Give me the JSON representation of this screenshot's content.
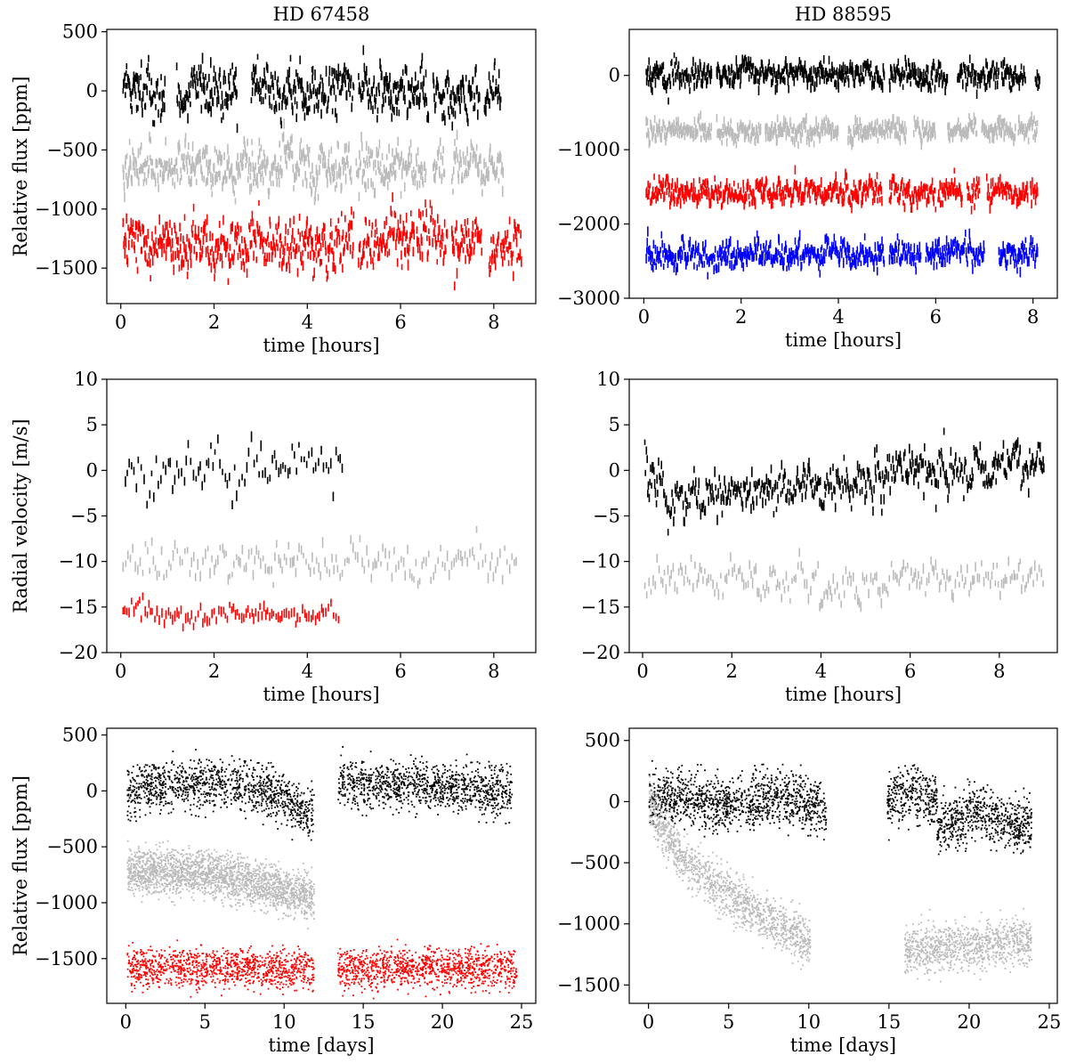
{
  "figure": {
    "background": "#ffffff"
  },
  "colors": {
    "black": "#000000",
    "gray": "#bbbbbb",
    "red": "#ff0000",
    "blue": "#0000ff"
  },
  "chart_data": [
    {
      "id": "p1",
      "type": "line",
      "style": "errorbar",
      "title": "HD 67458",
      "xlabel": "time [hours]",
      "ylabel": "Relative flux [ppm]",
      "xlim": [
        -0.3,
        8.9
      ],
      "ylim": [
        -1800,
        520
      ],
      "xticks": [
        0,
        2,
        4,
        6,
        8
      ],
      "xtick_labels": [
        "0",
        "2",
        "4",
        "6",
        "8"
      ],
      "yticks": [
        500,
        0,
        -500,
        -1000,
        -1500
      ],
      "ytick_labels": [
        "500",
        "0",
        "−500",
        "−1000",
        "−1500"
      ],
      "series": [
        {
          "name": "black",
          "color": "#000000",
          "offset": 0,
          "amplitude": 160,
          "segments": [
            [
              0.05,
              0.95
            ],
            [
              1.2,
              2.5
            ],
            [
              2.8,
              5.0
            ],
            [
              5.1,
              6.6
            ],
            [
              6.7,
              7.7
            ],
            [
              7.8,
              8.15
            ]
          ]
        },
        {
          "name": "gray",
          "color": "#bbbbbb",
          "offset": -650,
          "amplitude": 150,
          "segments": [
            [
              0.05,
              4.95
            ],
            [
              5.05,
              6.55
            ],
            [
              6.7,
              6.95
            ],
            [
              7.1,
              8.2
            ]
          ]
        },
        {
          "name": "red",
          "color": "#ff0000",
          "offset": -1280,
          "amplitude": 170,
          "segments": [
            [
              0.05,
              5.0
            ],
            [
              5.1,
              6.3
            ],
            [
              6.35,
              7.0
            ],
            [
              7.1,
              7.75
            ],
            [
              7.9,
              8.1
            ],
            [
              8.15,
              8.6
            ]
          ]
        }
      ]
    },
    {
      "id": "p2",
      "type": "line",
      "style": "errorbar",
      "title": "HD 88595",
      "xlabel": "time [hours]",
      "ylabel": "",
      "xlim": [
        -0.3,
        8.5
      ],
      "ylim": [
        -3000,
        620
      ],
      "xticks": [
        0,
        2,
        4,
        6,
        8
      ],
      "xtick_labels": [
        "0",
        "2",
        "4",
        "6",
        "8"
      ],
      "yticks": [
        0,
        -1000,
        -2000,
        -3000
      ],
      "ytick_labels": [
        "0",
        "−1000",
        "−2000",
        "−3000"
      ],
      "series": [
        {
          "name": "black",
          "color": "#000000",
          "offset": 0,
          "amplitude": 130,
          "segments": [
            [
              0.05,
              1.4
            ],
            [
              1.5,
              4.95
            ],
            [
              5.05,
              6.25
            ],
            [
              6.45,
              7.3
            ],
            [
              7.35,
              7.85
            ],
            [
              8.05,
              8.15
            ]
          ]
        },
        {
          "name": "gray",
          "color": "#bbbbbb",
          "offset": -750,
          "amplitude": 110,
          "segments": [
            [
              0.05,
              1.4
            ],
            [
              1.5,
              2.4
            ],
            [
              2.5,
              4.0
            ],
            [
              4.2,
              5.4
            ],
            [
              5.55,
              6.0
            ],
            [
              6.25,
              6.85
            ],
            [
              6.95,
              7.65
            ],
            [
              7.7,
              8.1
            ]
          ]
        },
        {
          "name": "red",
          "color": "#ff0000",
          "offset": -1580,
          "amplitude": 130,
          "segments": [
            [
              0.05,
              4.9
            ],
            [
              5.05,
              6.0
            ],
            [
              6.05,
              6.55
            ],
            [
              6.65,
              6.9
            ],
            [
              7.05,
              7.9
            ],
            [
              7.95,
              8.1
            ]
          ]
        },
        {
          "name": "blue",
          "color": "#0000ff",
          "offset": -2400,
          "amplitude": 140,
          "segments": [
            [
              0.05,
              4.95
            ],
            [
              5.05,
              5.7
            ],
            [
              5.8,
              7.0
            ],
            [
              7.3,
              8.1
            ]
          ]
        }
      ]
    },
    {
      "id": "p3",
      "type": "line",
      "style": "errorbar",
      "title": "",
      "xlabel": "time [hours]",
      "ylabel": "Radial velocity [m/s]",
      "xlim": [
        -0.3,
        8.9
      ],
      "ylim": [
        -20,
        10
      ],
      "xticks": [
        0,
        2,
        4,
        6,
        8
      ],
      "xtick_labels": [
        "0",
        "2",
        "4",
        "6",
        "8"
      ],
      "yticks": [
        10,
        5,
        0,
        -5,
        -10,
        -15,
        -20
      ],
      "ytick_labels": [
        "10",
        "5",
        "0",
        "−5",
        "−10",
        "−15",
        "−20"
      ],
      "series": [
        {
          "name": "black",
          "color": "#000000",
          "offset": 0,
          "amplitude": 2.3,
          "step": 0.05,
          "segments": [
            [
              0.1,
              4.75
            ]
          ]
        },
        {
          "name": "gray",
          "color": "#bbbbbb",
          "offset": -10,
          "amplitude": 1.6,
          "step": 0.045,
          "segments": [
            [
              0.05,
              8.5
            ]
          ]
        },
        {
          "name": "red",
          "color": "#ff0000",
          "offset": -15.7,
          "amplitude": 1.0,
          "step": 0.045,
          "segments": [
            [
              0.05,
              4.7
            ]
          ]
        }
      ]
    },
    {
      "id": "p4",
      "type": "line",
      "style": "errorbar",
      "title": "",
      "xlabel": "time [hours]",
      "ylabel": "",
      "xlim": [
        -0.3,
        9.3
      ],
      "ylim": [
        -20,
        10
      ],
      "xticks": [
        0,
        2,
        4,
        6,
        8
      ],
      "xtick_labels": [
        "0",
        "2",
        "4",
        "6",
        "8"
      ],
      "yticks": [
        10,
        5,
        0,
        -5,
        -10,
        -15,
        -20
      ],
      "ytick_labels": [
        "10",
        "5",
        "0",
        "−5",
        "−10",
        "−15",
        "−20"
      ],
      "series": [
        {
          "name": "black",
          "color": "#000000",
          "offset": 0,
          "amplitude": 1.9,
          "trend": "v",
          "step": 0.018,
          "segments": [
            [
              0.05,
              9.0
            ]
          ]
        },
        {
          "name": "gray",
          "color": "#bbbbbb",
          "offset": -12,
          "amplitude": 1.7,
          "step": 0.04,
          "segments": [
            [
              0.05,
              9.0
            ]
          ]
        }
      ]
    },
    {
      "id": "p5",
      "type": "scatter",
      "style": "dots",
      "title": "",
      "xlabel": "time [days]",
      "ylabel": "Relative flux [ppm]",
      "xlim": [
        -1.2,
        25.9
      ],
      "ylim": [
        -1900,
        560
      ],
      "xticks": [
        0,
        5,
        10,
        15,
        20,
        25
      ],
      "xtick_labels": [
        "0",
        "5",
        "10",
        "15",
        "20",
        "25"
      ],
      "yticks": [
        500,
        0,
        -500,
        -1000,
        -1500
      ],
      "ytick_labels": [
        "500",
        "0",
        "−500",
        "−1000",
        "−1500"
      ],
      "series": [
        {
          "name": "black",
          "color": "#000000",
          "offset": 0,
          "amplitude": 120,
          "trend": "k5a",
          "segments": [
            [
              0.1,
              11.9
            ],
            [
              13.4,
              24.4
            ]
          ]
        },
        {
          "name": "gray",
          "color": "#bbbbbb",
          "offset": -730,
          "amplitude": 110,
          "trend": "g5",
          "segments": [
            [
              0.1,
              11.9
            ]
          ]
        },
        {
          "name": "red",
          "color": "#ff0000",
          "offset": -1590,
          "amplitude": 95,
          "segments": [
            [
              0.1,
              11.9
            ],
            [
              13.4,
              24.7
            ]
          ]
        }
      ]
    },
    {
      "id": "p6",
      "type": "scatter",
      "style": "dots",
      "title": "",
      "xlabel": "time [days]",
      "ylabel": "",
      "xlim": [
        -1.2,
        25.5
      ],
      "ylim": [
        -1650,
        600
      ],
      "xticks": [
        0,
        5,
        10,
        15,
        20,
        25
      ],
      "xtick_labels": [
        "0",
        "5",
        "10",
        "15",
        "20",
        "25"
      ],
      "yticks": [
        500,
        0,
        -500,
        -1000,
        -1500
      ],
      "ytick_labels": [
        "500",
        "0",
        "−500",
        "−1000",
        "−1500"
      ],
      "series": [
        {
          "name": "black",
          "color": "#000000",
          "offset": 0,
          "amplitude": 120,
          "trend": "k6",
          "segments": [
            [
              0.05,
              11.1
            ],
            [
              14.9,
              23.9
            ]
          ]
        },
        {
          "name": "gray",
          "color": "#bbbbbb",
          "offset": -1200,
          "amplitude": 110,
          "trend": "g6",
          "segments": [
            [
              0.05,
              10.1
            ],
            [
              16.0,
              23.9
            ]
          ]
        }
      ]
    }
  ]
}
